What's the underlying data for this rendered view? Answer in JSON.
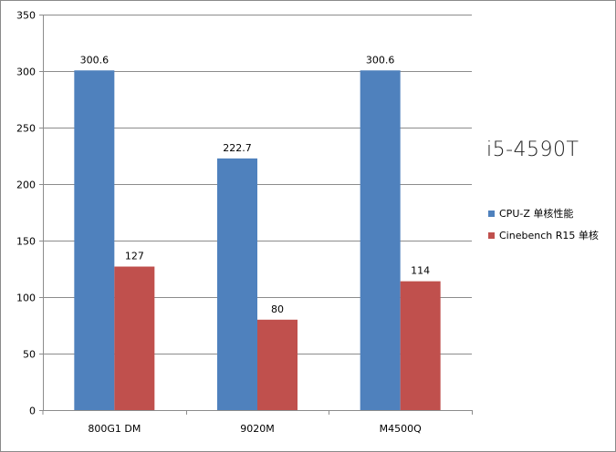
{
  "chart_data": {
    "type": "bar",
    "title": "",
    "xlabel": "",
    "ylabel": "",
    "categories": [
      "800G1 DM",
      "9020M",
      "M4500Q"
    ],
    "ylim": [
      0,
      350
    ],
    "yticks": [
      0,
      50,
      100,
      150,
      200,
      250,
      300,
      350
    ],
    "grid": true,
    "legend_position": "right",
    "series": [
      {
        "name": "CPU-Z 单核性能",
        "values": [
          300.6,
          222.7,
          300.6
        ],
        "color": "#4f81bd",
        "labels": [
          "300.6",
          "222.7",
          "300.6"
        ]
      },
      {
        "name": "Cinebench R15 单核",
        "values": [
          127,
          80,
          114
        ],
        "color": "#c0504d",
        "labels": [
          "127",
          "80",
          "114"
        ]
      }
    ],
    "annotation": "i5-4590T"
  }
}
